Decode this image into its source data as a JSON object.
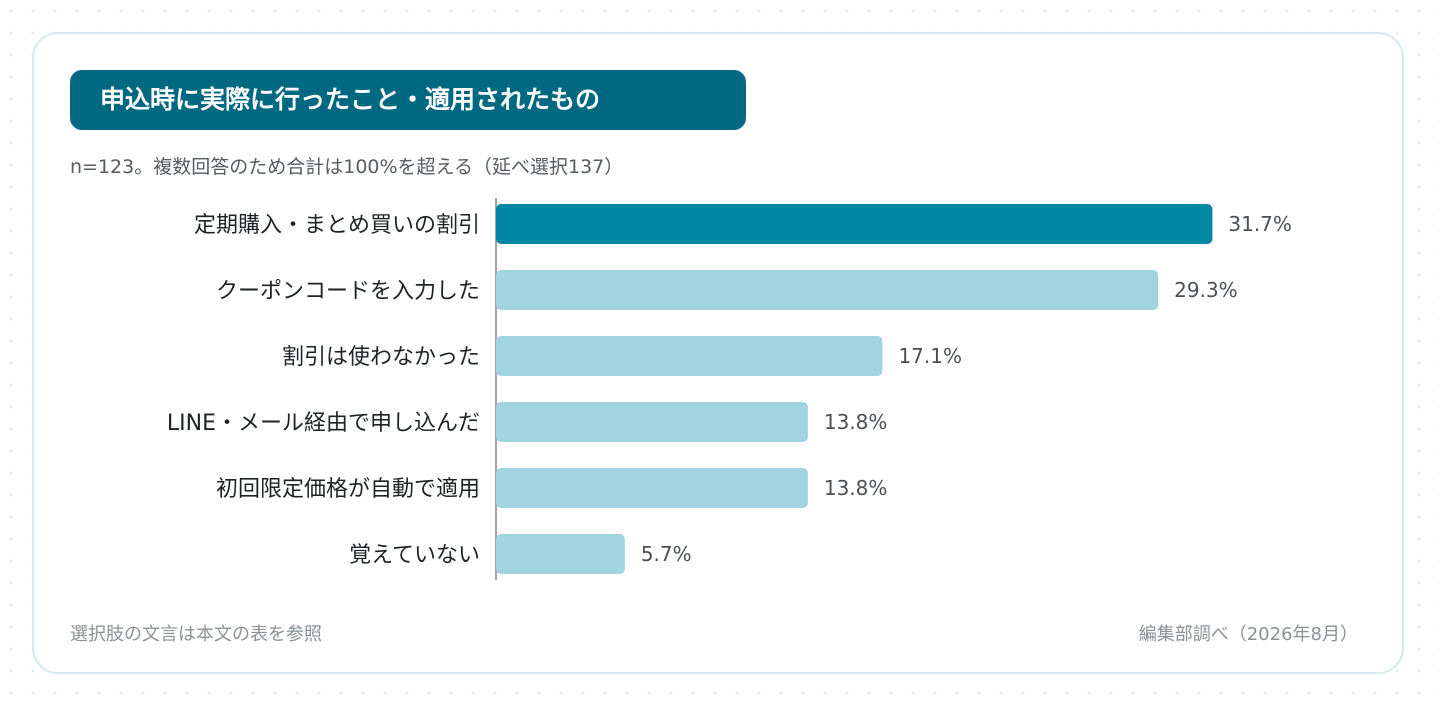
{
  "chart_data": {
    "type": "bar",
    "orientation": "horizontal",
    "title": "申込時に実際に行ったこと・適用されたもの",
    "subtitle": "n=123。複数回答のため合計は100%を超える（延べ選択137）",
    "categories": [
      "定期購入・まとめ買いの割引",
      "クーポンコードを入力した",
      "割引は使わなかった",
      "LINE・メール経由で申し込んだ",
      "初回限定価格が自動で適用",
      "覚えていない"
    ],
    "values": [
      31.7,
      29.3,
      17.1,
      13.8,
      13.8,
      5.7
    ],
    "value_labels": [
      "31.7%",
      "29.3%",
      "17.1%",
      "13.8%",
      "13.8%",
      "5.7%"
    ],
    "unit": "%",
    "xlim": [
      0,
      35.4
    ],
    "grid": false,
    "highlight_index": 0,
    "colors": {
      "highlight": "#0087a4",
      "bar": "#a0d4e0",
      "title_bg": "#006880",
      "axis": "#a0a4a8"
    }
  },
  "footnote_left": "選択肢の文言は本文の表を参照",
  "footnote_right": "編集部調べ（2026年8月）"
}
